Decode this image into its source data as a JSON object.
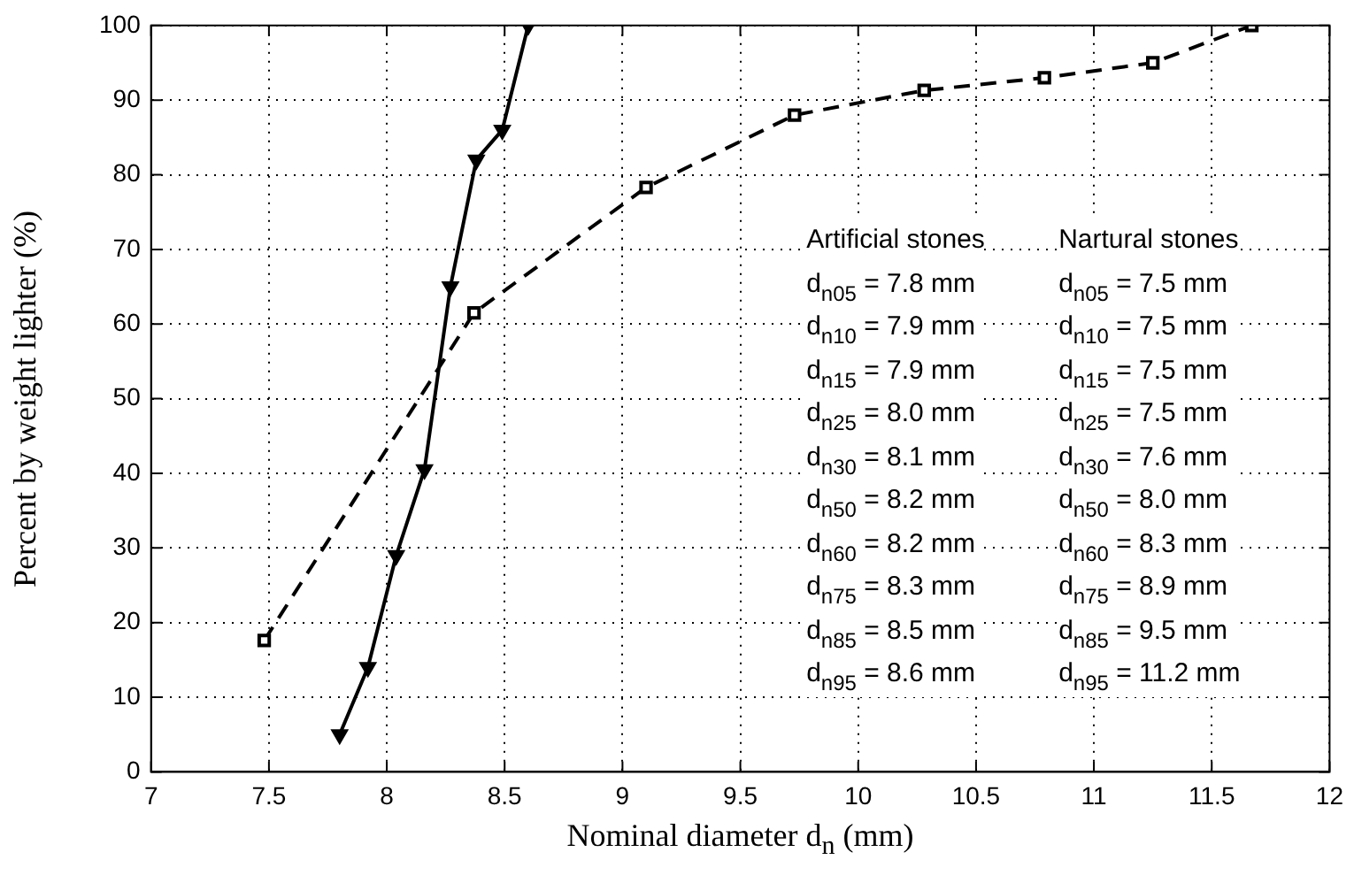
{
  "chart_data": {
    "type": "line",
    "xlabel": "Nominal diameter d$_{n}$ (mm)",
    "ylabel": "Percent by weight lighter (%)",
    "xlim": [
      7,
      12
    ],
    "xticks": [
      7,
      7.5,
      8,
      8.5,
      9,
      9.5,
      10,
      10.5,
      11,
      11.5,
      12
    ],
    "ylim": [
      0,
      100
    ],
    "yticks": [
      0,
      10,
      20,
      30,
      40,
      50,
      60,
      70,
      80,
      90,
      100
    ],
    "grid": true,
    "legend": false,
    "series": [
      {
        "color": "#000000",
        "marker": "triangle",
        "line_style": "solid",
        "x": [
          7.8,
          7.92,
          8.04,
          8.16,
          8.27,
          8.38,
          8.49,
          8.6
        ],
        "values": [
          5,
          14,
          29,
          40.5,
          65,
          82,
          86,
          100
        ]
      },
      {
        "color": "#000000",
        "marker": "square",
        "line_style": "dashed",
        "x": [
          7.48,
          8.37,
          9.1,
          9.73,
          10.28,
          10.79,
          11.25,
          11.67
        ],
        "values": [
          17.6,
          61.5,
          78.3,
          88,
          91.3,
          93,
          95,
          100
        ]
      }
    ],
    "annotations": [
      "Artificial stones",
      "d$_{n05}$ = 7.8 mm",
      "d$_{n10}$ = 7.9 mm",
      "d$_{n15}$ = 7.9 mm",
      "d$_{n25}$ = 8.0 mm",
      "d$_{n30}$ = 8.1 mm",
      "d$_{n50}$ = 8.2 mm",
      "d$_{n60}$ = 8.2 mm",
      "d$_{n75}$ = 8.3 mm",
      "d$_{n85}$ = 8.5 mm",
      "d$_{n95}$ = 8.6 mm",
      "Nartural stones",
      "d$_{n05}$ = 7.5 mm",
      "d$_{n10}$ = 7.5 mm",
      "d$_{n15}$ = 7.5 mm",
      "d$_{n25}$ = 7.5 mm",
      "d$_{n30}$ = 7.6 mm",
      "d$_{n50}$ = 8.0 mm",
      "d$_{n60}$ = 8.3 mm",
      "d$_{n75}$ = 8.9 mm",
      "d$_{n85}$ = 9.5 mm",
      "d$_{n95}$ = 11.2 mm"
    ]
  }
}
